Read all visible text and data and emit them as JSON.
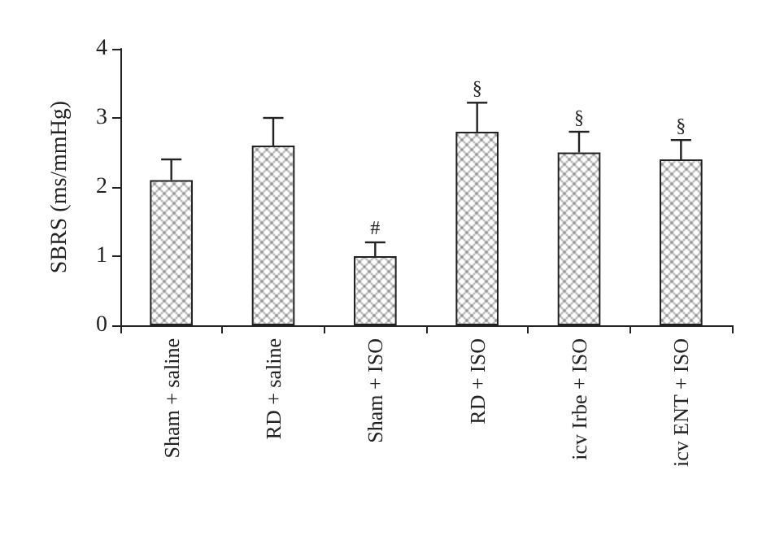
{
  "chart_data": {
    "type": "bar",
    "ylabel": "SBRS (ms/mmHg)",
    "categories": [
      "Sham + saline",
      "RD + saline",
      "Sham + ISO",
      "RD + ISO",
      "icv Irbe + ISO",
      "icv ENT + ISO"
    ],
    "values": [
      2.1,
      2.6,
      1.0,
      2.8,
      2.5,
      2.4
    ],
    "errors": [
      [
        2.1,
        2.4
      ],
      [
        2.6,
        3.0
      ],
      [
        1.0,
        1.2
      ],
      [
        2.8,
        3.22
      ],
      [
        2.5,
        2.8
      ],
      [
        2.4,
        2.68
      ]
    ],
    "color": "#222222",
    "ylim": [
      0,
      4
    ],
    "yticks": [
      0,
      1,
      2,
      3,
      4
    ],
    "grid": false,
    "annotations": [
      {
        "text": "#",
        "x": "Sham + ISO",
        "y": 1.2
      },
      {
        "text": "§",
        "x": "RD + ISO",
        "y": 3.22
      },
      {
        "text": "§",
        "x": "icv Irbe + ISO",
        "y": 2.8
      },
      {
        "text": "§",
        "x": "icv ENT + ISO",
        "y": 2.68
      }
    ]
  }
}
